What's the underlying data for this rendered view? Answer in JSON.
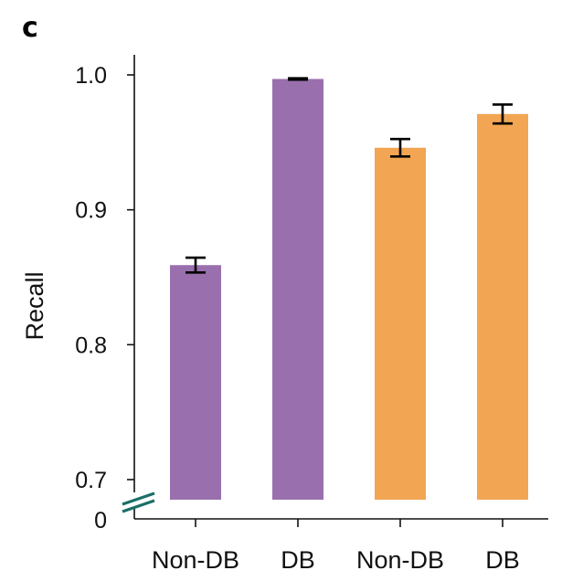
{
  "panel_label": "c",
  "colors": {
    "purple": "#9970ad",
    "orange": "#f2a553",
    "axis": "#111111",
    "break_mark": "#1b6f66"
  },
  "chart_data": {
    "type": "bar",
    "ylabel": "Recall",
    "ylim": [
      0.685,
      1.015
    ],
    "yticks": [
      {
        "value": 0.7,
        "label": "0.7"
      },
      {
        "value": 0.8,
        "label": "0.8"
      },
      {
        "value": 0.9,
        "label": "0.9"
      },
      {
        "value": 1.0,
        "label": "1.0"
      }
    ],
    "axis_break": true,
    "break_label": "0",
    "categories": [
      "Non-DB",
      "DB",
      "Non-DB",
      "DB"
    ],
    "values": [
      0.859,
      0.997,
      0.946,
      0.971
    ],
    "errors": [
      0.0055,
      0.0005,
      0.0065,
      0.007
    ],
    "bar_colors": [
      "#9970ad",
      "#9970ad",
      "#f2a553",
      "#f2a553"
    ]
  }
}
